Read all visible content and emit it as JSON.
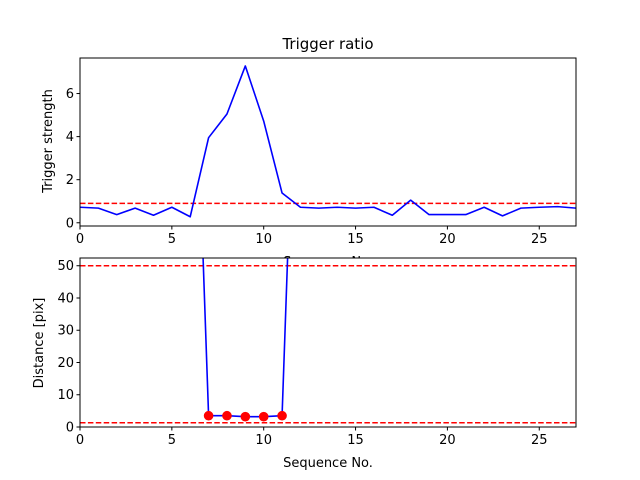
{
  "chart_data": [
    {
      "type": "line",
      "title": "Trigger ratio",
      "xlabel": "Sequence No.",
      "ylabel": "Trigger strength",
      "xlim": [
        0,
        27
      ],
      "ylim": [
        -0.15,
        7.65
      ],
      "xticks": [
        0,
        5,
        10,
        15,
        20,
        25
      ],
      "yticks": [
        0,
        2,
        4,
        6
      ],
      "grid": false,
      "series": [
        {
          "color": "#0000ff",
          "x": [
            0,
            1,
            2,
            3,
            4,
            5,
            6,
            7,
            8,
            9,
            10,
            11,
            12,
            13,
            14,
            15,
            16,
            17,
            18,
            19,
            20,
            21,
            22,
            23,
            24,
            25,
            26,
            27
          ],
          "values": [
            0.72,
            0.68,
            0.38,
            0.68,
            0.35,
            0.72,
            0.28,
            3.95,
            5.05,
            7.28,
            4.72,
            1.38,
            0.72,
            0.68,
            0.72,
            0.68,
            0.72,
            0.35,
            1.05,
            0.38,
            0.38,
            0.38,
            0.72,
            0.32,
            0.68,
            0.72,
            0.75,
            0.68
          ]
        }
      ],
      "hlines": [
        {
          "y": 0.9,
          "color": "#ff0000",
          "style": "dashed"
        }
      ]
    },
    {
      "type": "line",
      "title": "",
      "xlabel": "Sequence No.",
      "ylabel": "Distance [pix]",
      "xlim": [
        0,
        27
      ],
      "ylim": [
        0,
        52.4
      ],
      "xticks": [
        0,
        5,
        10,
        15,
        20,
        25
      ],
      "yticks": [
        0,
        10,
        20,
        30,
        40,
        50
      ],
      "grid": false,
      "series": [
        {
          "color": "#0000ff",
          "x": [
            6.7,
            7,
            8,
            9,
            10,
            11,
            11.3
          ],
          "values": [
            52.4,
            3.5,
            3.5,
            3.2,
            3.2,
            3.5,
            52.4
          ]
        }
      ],
      "markers": {
        "color": "#ff0000",
        "x": [
          7,
          8,
          9,
          10,
          11
        ],
        "values": [
          3.5,
          3.5,
          3.2,
          3.2,
          3.5
        ]
      },
      "hlines": [
        {
          "y": 50,
          "color": "#ff0000",
          "style": "dashed"
        },
        {
          "y": 1.3,
          "color": "#ff0000",
          "style": "dashed"
        }
      ]
    }
  ]
}
